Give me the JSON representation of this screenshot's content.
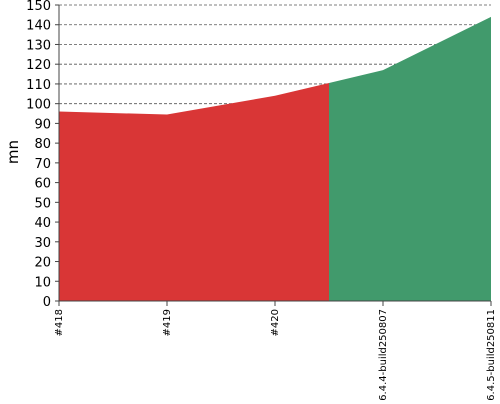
{
  "chart_data": {
    "type": "area",
    "ylabel": "mn",
    "xlabel": "",
    "categories": [
      "#418",
      "#419",
      "#420",
      "6.4.4-build250807",
      "6.4.5-build250811"
    ],
    "ylim": [
      0,
      150
    ],
    "yticks": [
      0,
      10,
      20,
      30,
      40,
      50,
      60,
      70,
      80,
      90,
      100,
      110,
      120,
      130,
      140,
      150
    ],
    "grid": true,
    "points": [
      {
        "x": 0,
        "y": 96
      },
      {
        "x": 1,
        "y": 94.5
      },
      {
        "x": 2,
        "y": 104
      },
      {
        "x": 2.5,
        "y": 110.5
      },
      {
        "x": 3,
        "y": 117
      },
      {
        "x": 4,
        "y": 144
      }
    ],
    "segments": [
      {
        "from": 0,
        "to": 2.5,
        "color": "#d93636"
      },
      {
        "from": 2.5,
        "to": 4,
        "color": "#419a6c"
      }
    ]
  }
}
